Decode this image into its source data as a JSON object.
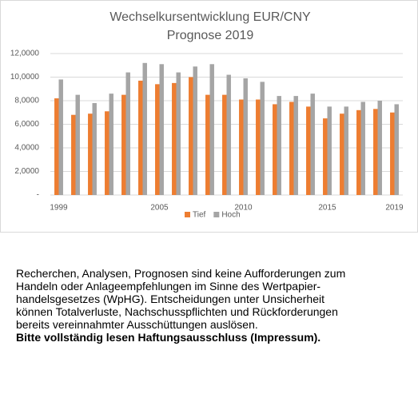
{
  "chart_data": {
    "type": "bar",
    "title": "Wechselkursentwicklung EUR/CNY",
    "subtitle": "Prognose 2019",
    "categories": [
      "1999",
      null,
      null,
      null,
      null,
      null,
      "2005",
      null,
      null,
      null,
      null,
      "2010",
      null,
      null,
      null,
      null,
      "2015",
      null,
      null,
      null,
      "2019"
    ],
    "series": [
      {
        "name": "Tief",
        "color": "#ed7d31",
        "values": [
          8.2,
          6.8,
          6.9,
          7.1,
          8.5,
          9.7,
          9.4,
          9.5,
          10.0,
          8.5,
          8.5,
          8.1,
          8.1,
          7.7,
          7.9,
          7.5,
          6.5,
          6.9,
          7.2,
          7.3,
          7.0
        ]
      },
      {
        "name": "Hoch",
        "color": "#a5a5a5",
        "values": [
          9.8,
          8.5,
          7.8,
          8.6,
          10.4,
          11.2,
          11.1,
          10.4,
          10.9,
          11.1,
          10.2,
          9.9,
          9.6,
          8.4,
          8.4,
          8.6,
          7.5,
          7.5,
          7.9,
          8.0,
          7.7
        ]
      }
    ],
    "ylim": [
      0,
      12
    ],
    "yticks": [
      {
        "value": 0,
        "label": "-"
      },
      {
        "value": 2,
        "label": "2,0000"
      },
      {
        "value": 4,
        "label": "4,0000"
      },
      {
        "value": 6,
        "label": "6,0000"
      },
      {
        "value": 8,
        "label": "8,0000"
      },
      {
        "value": 10,
        "label": "10,0000"
      },
      {
        "value": 12,
        "label": "12,0000"
      }
    ],
    "grid": true,
    "legend": "bottom"
  },
  "text": {
    "lines": [
      "Recherchen, Analysen, Prognosen sind keine Aufforderungen zum",
      "Handeln oder Anlageempfehlungen im Sinne des Wertpapier-",
      "handelsgesetzes (WpHG). Entscheidungen unter Unsicherheit",
      "können Totalverluste, Nachschusspflichten und Rückforderungen",
      "bereits vereinnahmter Ausschüttungen auslösen."
    ],
    "disclaimer": "Bitte vollständig lesen Haftungsausschluss (Impressum)."
  }
}
